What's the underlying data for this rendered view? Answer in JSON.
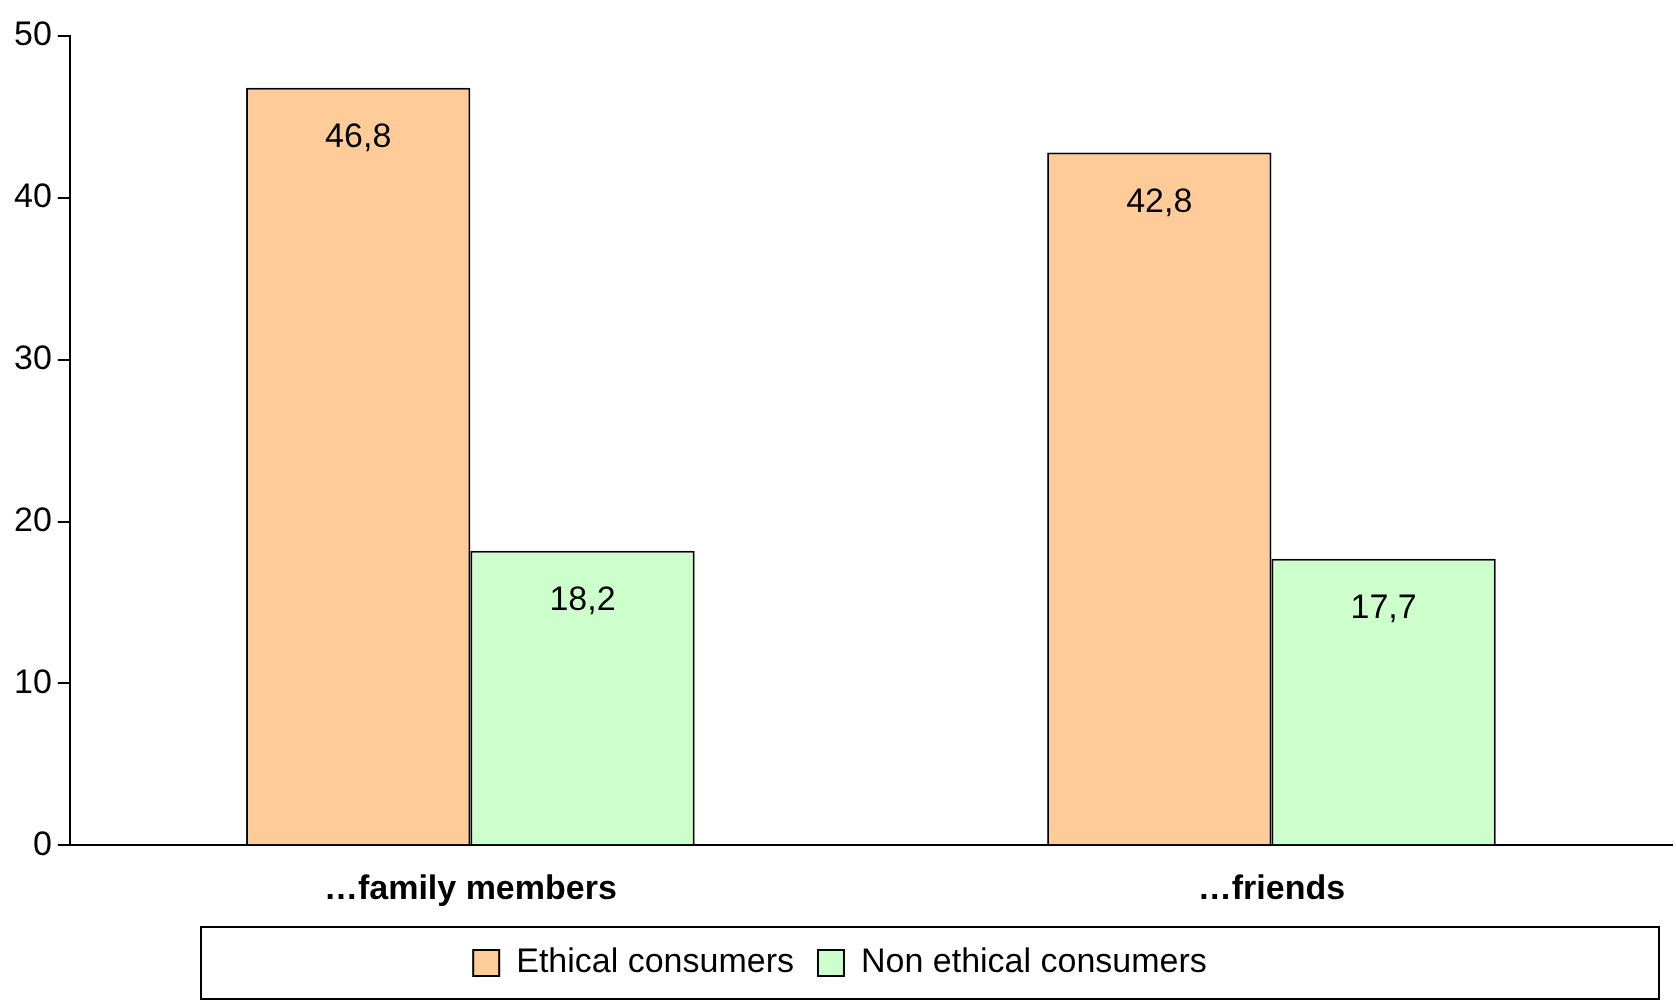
{
  "chart_data": {
    "type": "bar",
    "categories": [
      "…family members",
      "…friends"
    ],
    "series": [
      {
        "name": "Ethical consumers",
        "color": "#ffcc99",
        "values": [
          46.8,
          42.8
        ],
        "value_labels": [
          "46,8",
          "42,8"
        ]
      },
      {
        "name": "Non ethical consumers",
        "color": "#ccffcc",
        "values": [
          18.2,
          17.7
        ],
        "value_labels": [
          "18,2",
          "17,7"
        ]
      }
    ],
    "ylim": [
      0,
      50
    ],
    "yticks": [
      0,
      10,
      20,
      30,
      40,
      50
    ],
    "grid": false,
    "legend": "bottom"
  }
}
